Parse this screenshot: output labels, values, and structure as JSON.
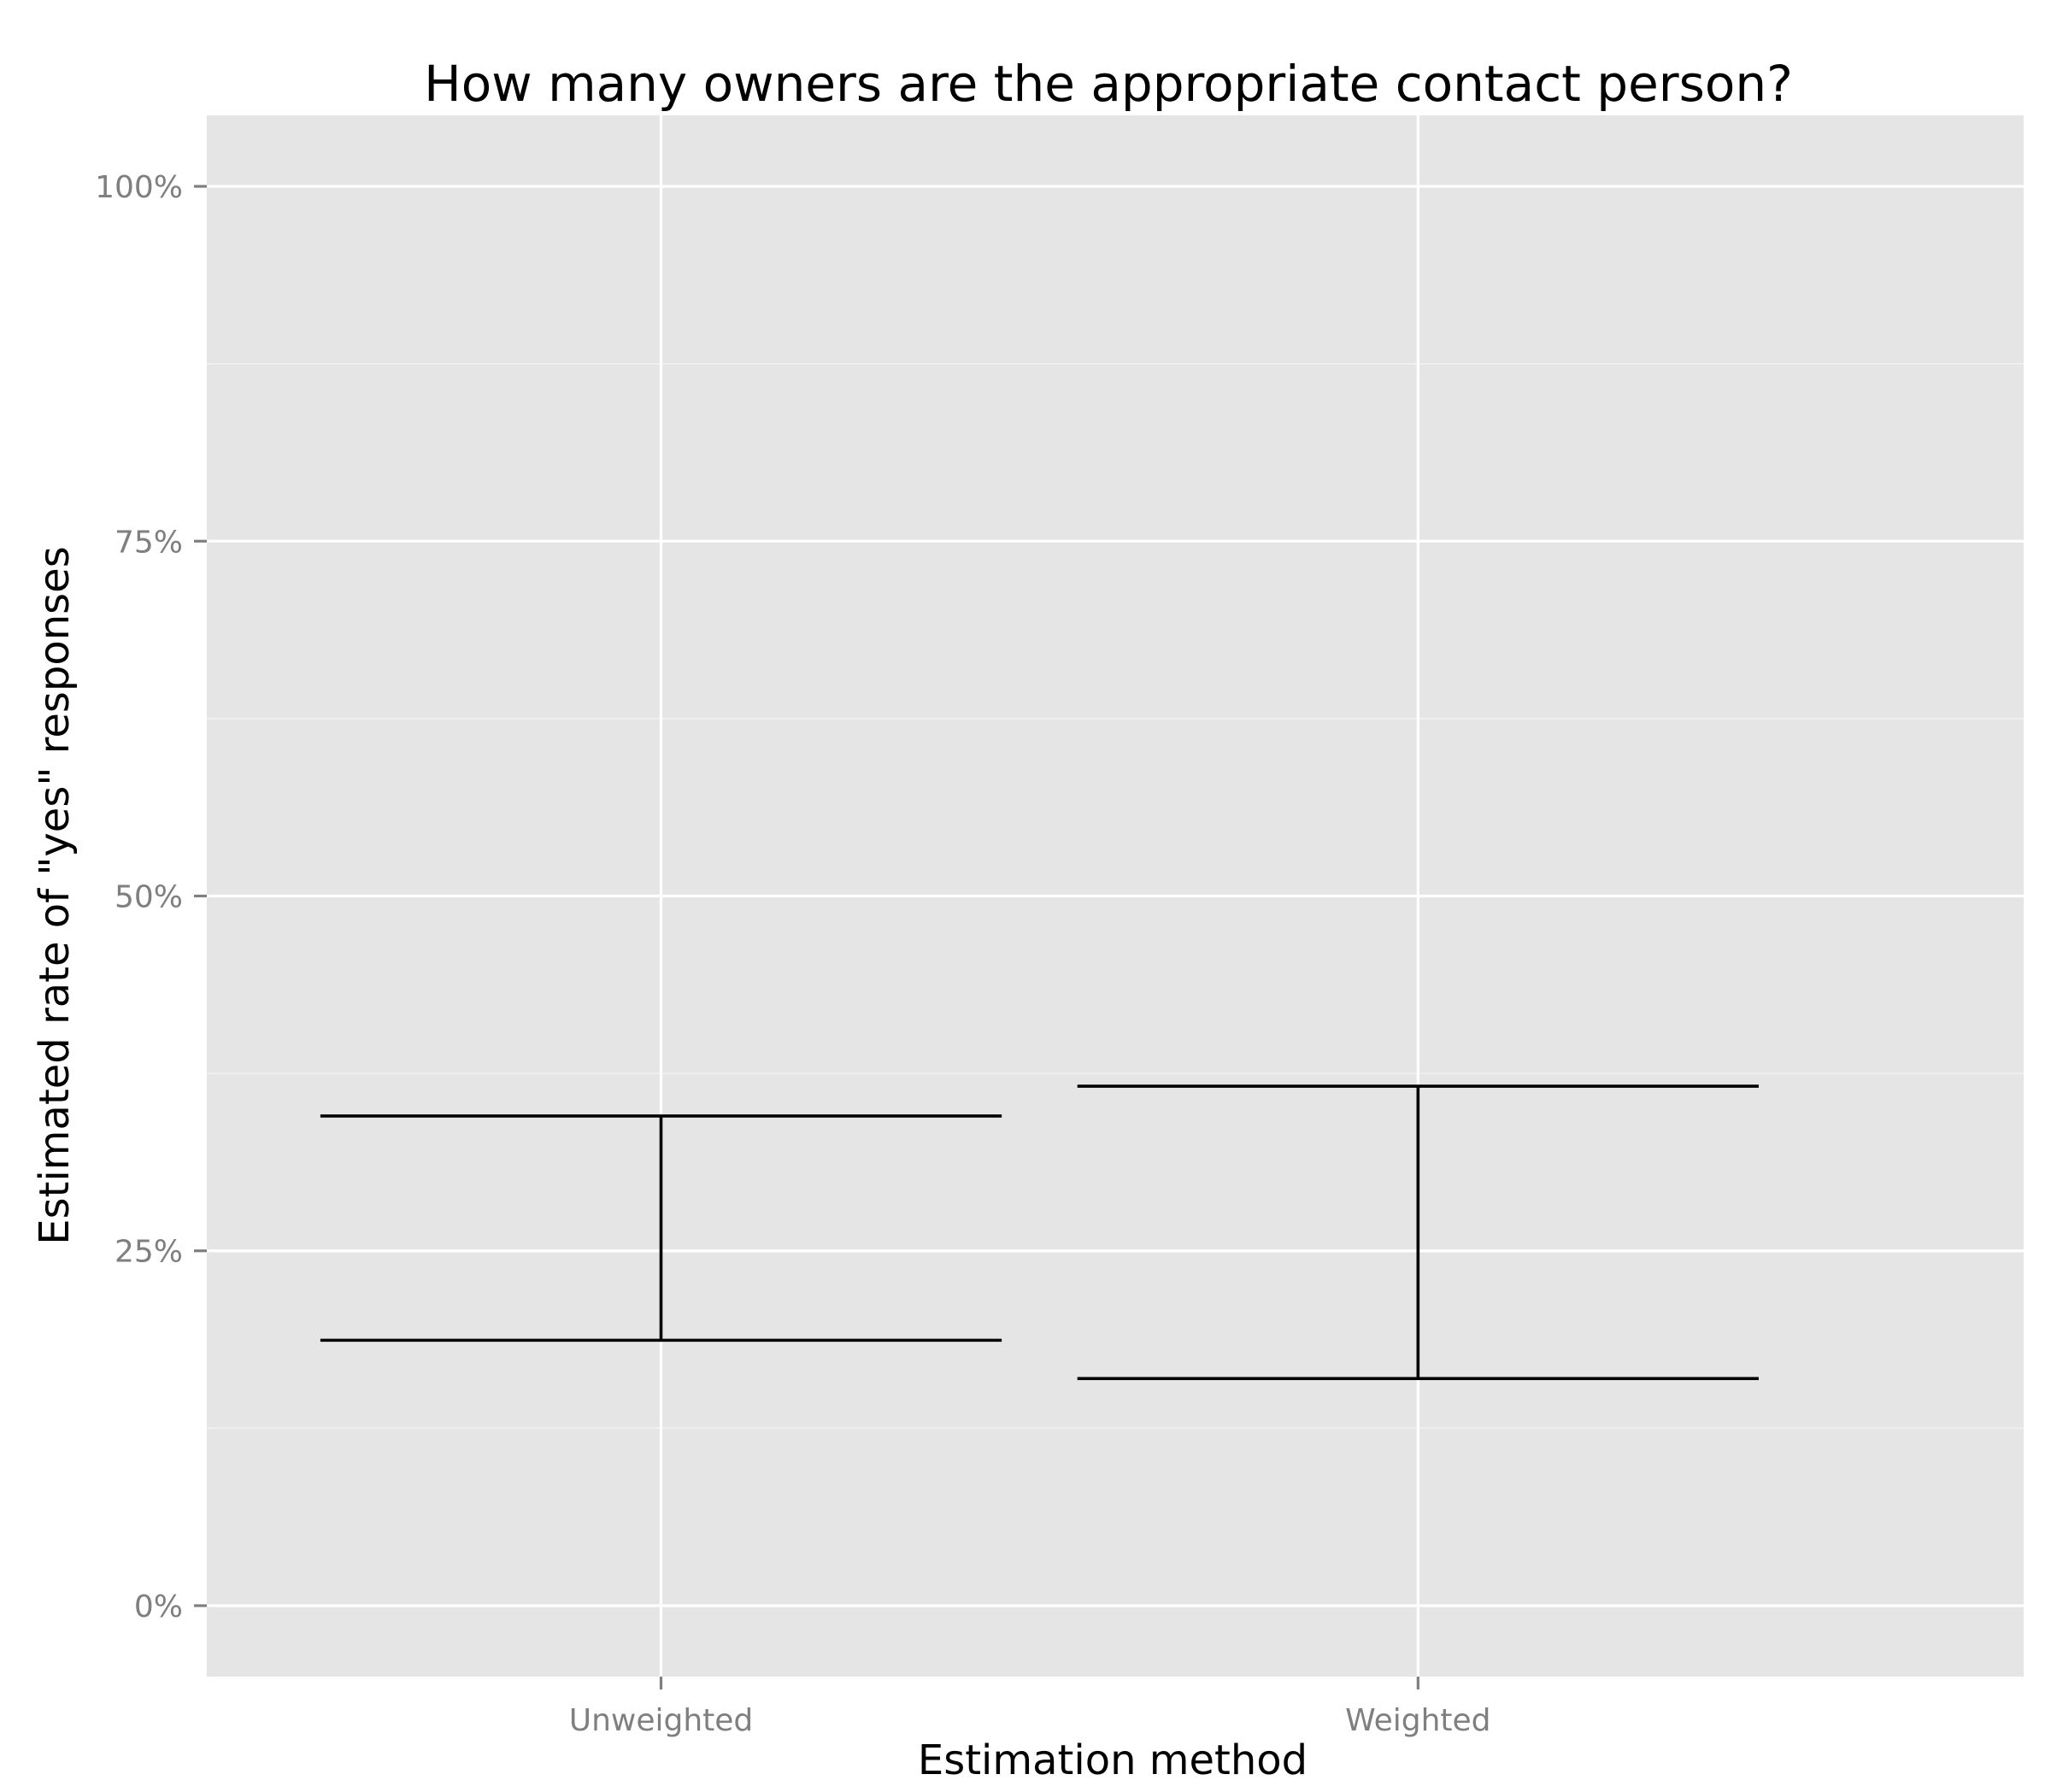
{
  "chart_data": {
    "type": "errorbar",
    "title": "How many owners are the appropriate contact person?",
    "xlabel": "Estimation method",
    "ylabel": "Estimated rate of \"yes\" responses",
    "categories": [
      "Unweighted",
      "Weighted"
    ],
    "intervals": [
      {
        "category": "Unweighted",
        "lower": 18.7,
        "upper": 34.5
      },
      {
        "category": "Weighted",
        "lower": 16.0,
        "upper": 36.6
      }
    ],
    "y_ticks": [
      {
        "value": 0,
        "label": "0%"
      },
      {
        "value": 25,
        "label": "25%"
      },
      {
        "value": 50,
        "label": "50%"
      },
      {
        "value": 75,
        "label": "75%"
      },
      {
        "value": 100,
        "label": "100%"
      }
    ],
    "ylim": [
      -5,
      105
    ],
    "grid": true,
    "legend": "none",
    "colors": {
      "panel": "#e5e5e5",
      "grid": "#ffffff",
      "marks": "#000000",
      "tick_text": "#7f7f7f"
    }
  }
}
